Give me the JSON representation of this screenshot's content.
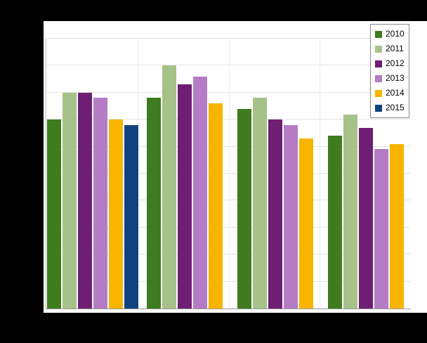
{
  "colors": {
    "page_background": "#000000",
    "chart_background": "#ffffff",
    "gridline": "#e3e3e3",
    "axis_line": "#9a9a9a",
    "legend_border": "#8a8a8a"
  },
  "chart_data": {
    "type": "bar",
    "orientation": "vertical",
    "title": "",
    "xlabel": "",
    "ylabel": "",
    "categories": [
      "",
      "",
      "",
      ""
    ],
    "series": [
      {
        "name": "2010",
        "color": "#3e7c1f",
        "values": [
          70,
          78,
          74,
          64
        ]
      },
      {
        "name": "2011",
        "color": "#a6c288",
        "values": [
          80,
          90,
          78,
          72
        ]
      },
      {
        "name": "2012",
        "color": "#6e1e73",
        "values": [
          80,
          83,
          70,
          67
        ]
      },
      {
        "name": "2013",
        "color": "#b57cc5",
        "values": [
          78,
          86,
          68,
          59
        ]
      },
      {
        "name": "2014",
        "color": "#f7b500",
        "values": [
          70,
          76,
          63,
          61
        ]
      },
      {
        "name": "2015",
        "color": "#10437f",
        "values": [
          68,
          null,
          null,
          null
        ]
      }
    ],
    "ylim": [
      0,
      100
    ],
    "gridlines": {
      "visible": true,
      "horizontal_count": 10,
      "vertical_count": 3
    },
    "legend_position": "top-right",
    "legend_labels": [
      "2010",
      "2011",
      "2012",
      "2013",
      "2014",
      "2015"
    ]
  }
}
